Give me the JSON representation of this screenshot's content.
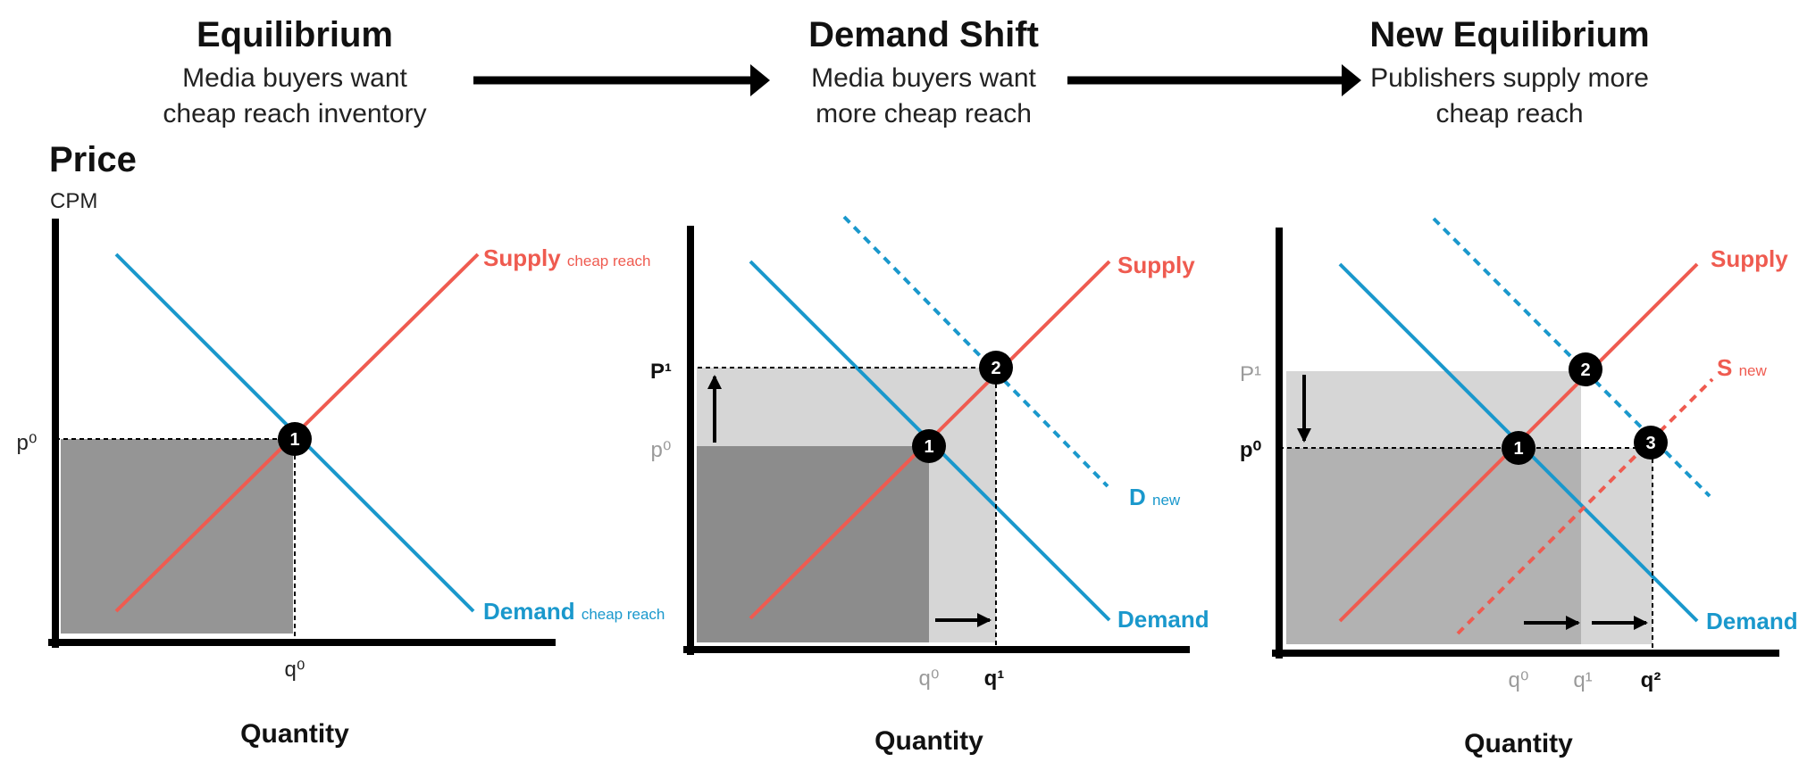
{
  "colors": {
    "supply": "#ef5b50",
    "demand": "#1a98cc",
    "axis": "#000000",
    "dark_fill": "#8c8c8c",
    "light_fill": "#d6d6d6",
    "muted_text": "#9a9a9a"
  },
  "stages": [
    {
      "title": "Equilibrium",
      "subtitle_1": "Media buyers want",
      "subtitle_2": "cheap reach inventory"
    },
    {
      "title": "Demand Shift",
      "subtitle_1": "Media buyers want",
      "subtitle_2": "more cheap reach"
    },
    {
      "title": "New Equilibrium",
      "subtitle_1": "Publishers supply more",
      "subtitle_2": "cheap reach"
    }
  ],
  "y_axis": {
    "label": "Price",
    "unit": "CPM"
  },
  "panels": [
    {
      "x_label": "Quantity",
      "supply_label": "Supply",
      "supply_sub": "cheap reach",
      "demand_label": "Demand",
      "demand_sub": "cheap reach",
      "p0": "p⁰",
      "q0": "q⁰",
      "point_1": "1"
    },
    {
      "x_label": "Quantity",
      "supply_label": "Supply",
      "demand_label": "Demand",
      "dnew_label": "D",
      "dnew_sub": "new",
      "p1": "P¹",
      "p0": "p⁰",
      "q0": "q⁰",
      "q1": "q¹",
      "point_1": "1",
      "point_2": "2"
    },
    {
      "x_label": "Quantity",
      "supply_label": "Supply",
      "demand_label": "Demand",
      "snew_label": "S",
      "snew_sub": "new",
      "p1": "P¹",
      "p0": "p⁰",
      "q0": "q⁰",
      "q1": "q¹",
      "q2": "q²",
      "point_1": "1",
      "point_2": "2",
      "point_3": "3"
    }
  ]
}
